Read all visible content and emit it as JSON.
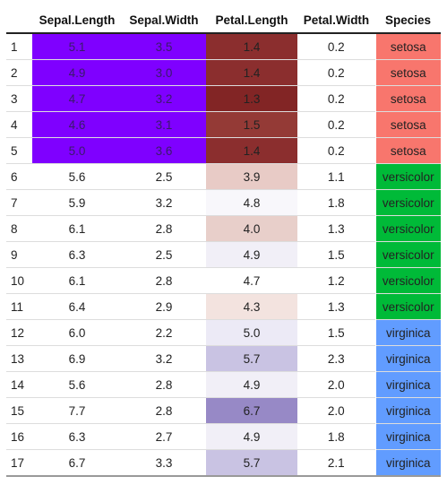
{
  "table": {
    "headers": [
      "",
      "Sepal.Length",
      "Sepal.Width",
      "Petal.Length",
      "Petal.Width",
      "Species"
    ],
    "rows": [
      {
        "idx": "1",
        "sepal_length": "5.1",
        "sepal_width": "3.5",
        "petal_length": "1.4",
        "petal_width": "0.2",
        "species": "setosa"
      },
      {
        "idx": "2",
        "sepal_length": "4.9",
        "sepal_width": "3.0",
        "petal_length": "1.4",
        "petal_width": "0.2",
        "species": "setosa"
      },
      {
        "idx": "3",
        "sepal_length": "4.7",
        "sepal_width": "3.2",
        "petal_length": "1.3",
        "petal_width": "0.2",
        "species": "setosa"
      },
      {
        "idx": "4",
        "sepal_length": "4.6",
        "sepal_width": "3.1",
        "petal_length": "1.5",
        "petal_width": "0.2",
        "species": "setosa"
      },
      {
        "idx": "5",
        "sepal_length": "5.0",
        "sepal_width": "3.6",
        "petal_length": "1.4",
        "petal_width": "0.2",
        "species": "setosa"
      },
      {
        "idx": "6",
        "sepal_length": "5.6",
        "sepal_width": "2.5",
        "petal_length": "3.9",
        "petal_width": "1.1",
        "species": "versicolor"
      },
      {
        "idx": "7",
        "sepal_length": "5.9",
        "sepal_width": "3.2",
        "petal_length": "4.8",
        "petal_width": "1.8",
        "species": "versicolor"
      },
      {
        "idx": "8",
        "sepal_length": "6.1",
        "sepal_width": "2.8",
        "petal_length": "4.0",
        "petal_width": "1.3",
        "species": "versicolor"
      },
      {
        "idx": "9",
        "sepal_length": "6.3",
        "sepal_width": "2.5",
        "petal_length": "4.9",
        "petal_width": "1.5",
        "species": "versicolor"
      },
      {
        "idx": "10",
        "sepal_length": "6.1",
        "sepal_width": "2.8",
        "petal_length": "4.7",
        "petal_width": "1.2",
        "species": "versicolor"
      },
      {
        "idx": "11",
        "sepal_length": "6.4",
        "sepal_width": "2.9",
        "petal_length": "4.3",
        "petal_width": "1.3",
        "species": "versicolor"
      },
      {
        "idx": "12",
        "sepal_length": "6.0",
        "sepal_width": "2.2",
        "petal_length": "5.0",
        "petal_width": "1.5",
        "species": "virginica"
      },
      {
        "idx": "13",
        "sepal_length": "6.9",
        "sepal_width": "3.2",
        "petal_length": "5.7",
        "petal_width": "2.3",
        "species": "virginica"
      },
      {
        "idx": "14",
        "sepal_length": "5.6",
        "sepal_width": "2.8",
        "petal_length": "4.9",
        "petal_width": "2.0",
        "species": "virginica"
      },
      {
        "idx": "15",
        "sepal_length": "7.7",
        "sepal_width": "2.8",
        "petal_length": "6.7",
        "petal_width": "2.0",
        "species": "virginica"
      },
      {
        "idx": "16",
        "sepal_length": "6.3",
        "sepal_width": "2.7",
        "petal_length": "4.9",
        "petal_width": "1.8",
        "species": "virginica"
      },
      {
        "idx": "17",
        "sepal_length": "6.7",
        "sepal_width": "3.3",
        "petal_length": "5.7",
        "petal_width": "2.1",
        "species": "virginica"
      }
    ]
  },
  "colors": {
    "sepal_highlight": "#7f00ff",
    "species": {
      "setosa": "#f8766d",
      "versicolor": "#00ba38",
      "virginica": "#619cff"
    },
    "petal_length_cells": [
      "#8b2e2e",
      "#8b2e2e",
      "#822525",
      "#943a36",
      "#8b2e2e",
      "#e8cbc6",
      "#f8f7fb",
      "#e8cfca",
      "#f1eff7",
      "#ffffff",
      "#f3e3df",
      "#eceaf6",
      "#c9c3e3",
      "#f1eff7",
      "#9789c6",
      "#f1eff7",
      "#c9c3e3"
    ]
  }
}
